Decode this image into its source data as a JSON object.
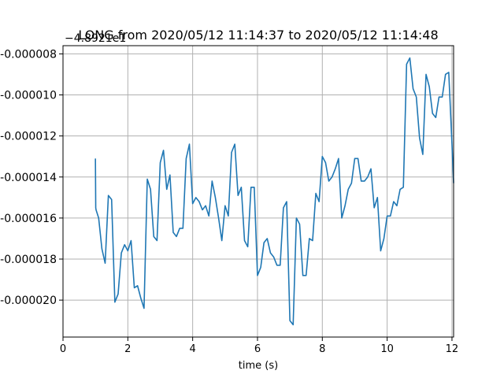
{
  "chart_data": {
    "type": "line",
    "title": "LONG from 2020/05/12 11:14:37 to 2020/05/12 11:14:48",
    "xlabel": "time (s)",
    "ylabel": "",
    "offset_text": "−4.8921e1",
    "xlim": [
      0,
      12.05
    ],
    "ylim": [
      -2.18e-05,
      -7.6e-06
    ],
    "grid": true,
    "x_ticks": [
      0,
      2,
      4,
      6,
      8,
      10,
      12
    ],
    "x_tick_labels": [
      "0",
      "2",
      "4",
      "6",
      "8",
      "10",
      "12"
    ],
    "y_ticks": [
      -8e-06,
      -1e-05,
      -1.2e-05,
      -1.4e-05,
      -1.6e-05,
      -1.8e-05,
      -2e-05
    ],
    "y_tick_labels": [
      "-0.000008",
      "-0.000010",
      "-0.000012",
      "-0.000014",
      "-0.000016",
      "-0.000018",
      "-0.000020"
    ],
    "series": [
      {
        "color": "#1f77b4",
        "x": [
          1.0,
          1.01,
          1.02,
          1.1,
          1.2,
          1.3,
          1.4,
          1.5,
          1.6,
          1.7,
          1.8,
          1.9,
          2.0,
          2.1,
          2.2,
          2.3,
          2.4,
          2.5,
          2.6,
          2.7,
          2.8,
          2.9,
          3.0,
          3.1,
          3.2,
          3.3,
          3.4,
          3.5,
          3.6,
          3.7,
          3.8,
          3.9,
          4.0,
          4.1,
          4.2,
          4.3,
          4.4,
          4.5,
          4.6,
          4.7,
          4.8,
          4.9,
          5.0,
          5.1,
          5.2,
          5.3,
          5.4,
          5.5,
          5.6,
          5.7,
          5.8,
          5.9,
          6.0,
          6.1,
          6.2,
          6.3,
          6.4,
          6.5,
          6.6,
          6.7,
          6.8,
          6.9,
          7.0,
          7.1,
          7.2,
          7.3,
          7.4,
          7.5,
          7.6,
          7.7,
          7.8,
          7.9,
          8.0,
          8.1,
          8.2,
          8.3,
          8.4,
          8.5,
          8.6,
          8.7,
          8.8,
          8.9,
          9.0,
          9.1,
          9.2,
          9.3,
          9.4,
          9.5,
          9.6,
          9.7,
          9.8,
          9.9,
          10.0,
          10.1,
          10.2,
          10.3,
          10.4,
          10.5,
          10.6,
          10.7,
          10.8,
          10.9,
          11.0,
          11.1,
          11.2,
          11.3,
          11.4,
          11.5,
          11.6,
          11.7,
          11.8,
          11.9,
          12.0,
          12.05
        ],
        "y": [
          -1.31e-05,
          -1.55e-05,
          -1.56e-05,
          -1.6e-05,
          -1.75e-05,
          -1.82e-05,
          -1.49e-05,
          -1.51e-05,
          -2.01e-05,
          -1.97e-05,
          -1.77e-05,
          -1.73e-05,
          -1.76e-05,
          -1.71e-05,
          -1.94e-05,
          -1.93e-05,
          -1.99e-05,
          -2.04e-05,
          -1.41e-05,
          -1.46e-05,
          -1.69e-05,
          -1.71e-05,
          -1.33e-05,
          -1.27e-05,
          -1.46e-05,
          -1.39e-05,
          -1.67e-05,
          -1.69e-05,
          -1.65e-05,
          -1.65e-05,
          -1.31e-05,
          -1.24e-05,
          -1.53e-05,
          -1.5e-05,
          -1.52e-05,
          -1.56e-05,
          -1.54e-05,
          -1.59e-05,
          -1.42e-05,
          -1.5e-05,
          -1.6e-05,
          -1.71e-05,
          -1.54e-05,
          -1.59e-05,
          -1.28e-05,
          -1.24e-05,
          -1.49e-05,
          -1.45e-05,
          -1.71e-05,
          -1.74e-05,
          -1.45e-05,
          -1.45e-05,
          -1.88e-05,
          -1.84e-05,
          -1.72e-05,
          -1.7e-05,
          -1.77e-05,
          -1.79e-05,
          -1.83e-05,
          -1.83e-05,
          -1.55e-05,
          -1.52e-05,
          -2.1e-05,
          -2.12e-05,
          -1.6e-05,
          -1.63e-05,
          -1.88e-05,
          -1.88e-05,
          -1.7e-05,
          -1.71e-05,
          -1.48e-05,
          -1.52e-05,
          -1.3e-05,
          -1.33e-05,
          -1.42e-05,
          -1.4e-05,
          -1.36e-05,
          -1.31e-05,
          -1.6e-05,
          -1.54e-05,
          -1.46e-05,
          -1.43e-05,
          -1.31e-05,
          -1.31e-05,
          -1.42e-05,
          -1.42e-05,
          -1.4e-05,
          -1.36e-05,
          -1.55e-05,
          -1.5e-05,
          -1.76e-05,
          -1.7e-05,
          -1.59e-05,
          -1.59e-05,
          -1.52e-05,
          -1.54e-05,
          -1.46e-05,
          -1.45e-05,
          -8.5e-06,
          -8.2e-06,
          -9.7e-06,
          -1.01e-05,
          -1.21e-05,
          -1.29e-05,
          -9e-06,
          -9.6e-06,
          -1.09e-05,
          -1.11e-05,
          -1.01e-05,
          -1.01e-05,
          -9e-06,
          -8.9e-06,
          -1.24e-05,
          -1.43e-05
        ]
      }
    ]
  }
}
